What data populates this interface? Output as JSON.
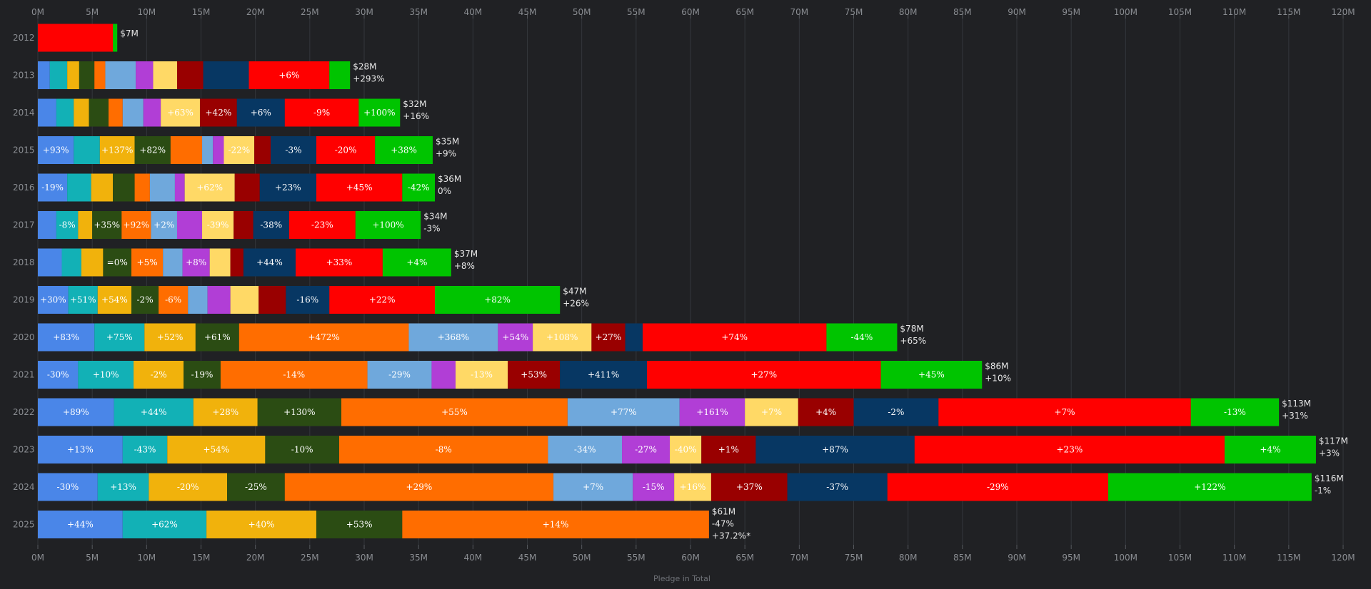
{
  "chart_data": {
    "type": "bar",
    "orientation": "horizontal",
    "stacked": true,
    "xlabel": "Pledge in Total",
    "xlim": [
      0,
      120
    ],
    "x_unit": "M",
    "x_ticks": [
      "0M",
      "5M",
      "10M",
      "15M",
      "20M",
      "25M",
      "30M",
      "35M",
      "40M",
      "45M",
      "50M",
      "55M",
      "60M",
      "65M",
      "70M",
      "75M",
      "80M",
      "85M",
      "90M",
      "95M",
      "100M",
      "105M",
      "110M",
      "115M",
      "120M"
    ],
    "segment_colors": [
      "#4a86e8",
      "#12b1b6",
      "#f1b20c",
      "#2b4c13",
      "#ff6d00",
      "#6fa8dc",
      "#b13ed6",
      "#ffd966",
      "#990000",
      "#073763",
      "#ff0000",
      "#00c400"
    ],
    "rows": [
      {
        "year": "2012",
        "values": [
          0,
          0,
          0,
          0,
          0,
          0,
          0,
          0,
          0,
          0,
          6.9,
          0.4
        ],
        "labels": [
          "",
          "",
          "",
          "",
          "",
          "",
          "",
          "",
          "",
          "",
          "",
          ""
        ],
        "total_label": "$7M",
        "change_label": "",
        "extra_label": ""
      },
      {
        "year": "2013",
        "values": [
          1.1,
          1.6,
          1.1,
          1.4,
          1.0,
          2.8,
          1.6,
          2.2,
          2.4,
          4.2,
          7.4,
          1.9
        ],
        "labels": [
          "",
          "",
          "",
          "",
          "",
          "",
          "",
          "",
          "",
          "",
          "+6%",
          ""
        ],
        "total_label": "$28M",
        "change_label": "+293%",
        "extra_label": ""
      },
      {
        "year": "2014",
        "values": [
          1.7,
          1.6,
          1.4,
          1.8,
          1.3,
          1.9,
          1.6,
          3.6,
          3.4,
          4.4,
          6.8,
          3.8
        ],
        "labels": [
          "",
          "",
          "",
          "",
          "",
          "",
          "",
          "+63%",
          "+42%",
          "+6%",
          "-9%",
          "+100%"
        ],
        "total_label": "$32M",
        "change_label": "+16%",
        "extra_label": ""
      },
      {
        "year": "2015",
        "values": [
          3.3,
          2.4,
          3.2,
          3.3,
          2.9,
          1.0,
          1.0,
          2.8,
          1.5,
          4.2,
          5.4,
          5.3
        ],
        "labels": [
          "+93%",
          "",
          "+137%",
          "+82%",
          "",
          "",
          "",
          "-22%",
          "",
          "-3%",
          "-20%",
          "+38%"
        ],
        "total_label": "$35M",
        "change_label": "+9%",
        "extra_label": ""
      },
      {
        "year": "2016",
        "values": [
          2.7,
          2.2,
          2.0,
          2.0,
          1.4,
          2.3,
          0.9,
          4.6,
          2.3,
          5.2,
          7.9,
          3.0
        ],
        "labels": [
          "-19%",
          "",
          "",
          "",
          "",
          "",
          "",
          "+62%",
          "",
          "+23%",
          "+45%",
          "-42%"
        ],
        "total_label": "$36M",
        "change_label": "0%",
        "extra_label": ""
      },
      {
        "year": "2017",
        "values": [
          1.7,
          2.0,
          1.3,
          2.7,
          2.7,
          2.4,
          2.3,
          2.9,
          1.8,
          3.3,
          6.1,
          6.0
        ],
        "labels": [
          "",
          "-8%",
          "",
          "+35%",
          "+92%",
          "+2%",
          "",
          "-39%",
          "",
          "-38%",
          "-23%",
          "+100%"
        ],
        "total_label": "$34M",
        "change_label": "-3%",
        "extra_label": ""
      },
      {
        "year": "2018",
        "values": [
          2.2,
          1.8,
          2.0,
          2.6,
          2.9,
          1.8,
          2.5,
          1.9,
          1.2,
          4.8,
          8.0,
          6.3
        ],
        "labels": [
          "",
          "",
          "",
          "=0%",
          "+5%",
          "",
          "+8%",
          "",
          "",
          "+44%",
          "+33%",
          "+4%"
        ],
        "total_label": "$37M",
        "change_label": "+8%",
        "extra_label": ""
      },
      {
        "year": "2019",
        "values": [
          2.8,
          2.7,
          3.1,
          2.5,
          2.7,
          1.8,
          2.1,
          2.6,
          2.5,
          4.0,
          9.7,
          11.5
        ],
        "labels": [
          "+30%",
          "+51%",
          "+54%",
          "-2%",
          "-6%",
          "",
          "",
          "",
          "",
          "-16%",
          "+22%",
          "+82%"
        ],
        "total_label": "$47M",
        "change_label": "+26%",
        "extra_label": ""
      },
      {
        "year": "2020",
        "values": [
          5.2,
          4.6,
          4.7,
          4.0,
          15.6,
          8.2,
          3.2,
          5.4,
          3.1,
          1.6,
          16.9,
          6.5
        ],
        "labels": [
          "+83%",
          "+75%",
          "+52%",
          "+61%",
          "+472%",
          "+368%",
          "+54%",
          "+108%",
          "+27%",
          "",
          "+74%",
          "-44%"
        ],
        "total_label": "$78M",
        "change_label": "+65%",
        "extra_label": ""
      },
      {
        "year": "2021",
        "values": [
          3.7,
          5.1,
          4.6,
          3.4,
          13.5,
          5.9,
          2.2,
          4.8,
          4.8,
          8.0,
          21.5,
          9.3
        ],
        "labels": [
          "-30%",
          "+10%",
          "-2%",
          "-19%",
          "-14%",
          "-29%",
          "",
          "-13%",
          "+53%",
          "+411%",
          "+27%",
          "+45%"
        ],
        "total_label": "$86M",
        "change_label": "+10%",
        "extra_label": ""
      },
      {
        "year": "2022",
        "values": [
          7.0,
          7.3,
          5.9,
          7.7,
          20.8,
          10.3,
          6.0,
          4.9,
          5.1,
          7.8,
          23.2,
          8.1
        ],
        "labels": [
          "+89%",
          "+44%",
          "+28%",
          "+130%",
          "+55%",
          "+77%",
          "+161%",
          "+7%",
          "+4%",
          "-2%",
          "+7%",
          "-13%"
        ],
        "total_label": "$113M",
        "change_label": "+31%",
        "extra_label": ""
      },
      {
        "year": "2023",
        "values": [
          7.8,
          4.1,
          9.0,
          6.8,
          19.2,
          6.8,
          4.4,
          2.9,
          5.0,
          14.6,
          28.5,
          8.4
        ],
        "labels": [
          "+13%",
          "-43%",
          "+54%",
          "-10%",
          "-8%",
          "-34%",
          "-27%",
          "-40%",
          "+1%",
          "+87%",
          "+23%",
          "+4%"
        ],
        "total_label": "$117M",
        "change_label": "+3%",
        "extra_label": ""
      },
      {
        "year": "2024",
        "values": [
          5.5,
          4.7,
          7.2,
          5.3,
          24.7,
          7.3,
          3.8,
          3.4,
          7.0,
          9.2,
          20.3,
          18.7
        ],
        "labels": [
          "-30%",
          "+13%",
          "-20%",
          "-25%",
          "+29%",
          "+7%",
          "-15%",
          "+16%",
          "+37%",
          "-37%",
          "-29%",
          "+122%"
        ],
        "total_label": "$116M",
        "change_label": "-1%",
        "extra_label": ""
      },
      {
        "year": "2025",
        "values": [
          7.8,
          7.7,
          10.1,
          7.9,
          28.2,
          0,
          0,
          0,
          0,
          0,
          0,
          0
        ],
        "labels": [
          "+44%",
          "+62%",
          "+40%",
          "+53%",
          "+14%",
          "",
          "",
          "",
          "",
          "",
          "",
          ""
        ],
        "total_label": "$61M",
        "change_label": "-47%",
        "extra_label": "+37.2%*"
      }
    ]
  }
}
